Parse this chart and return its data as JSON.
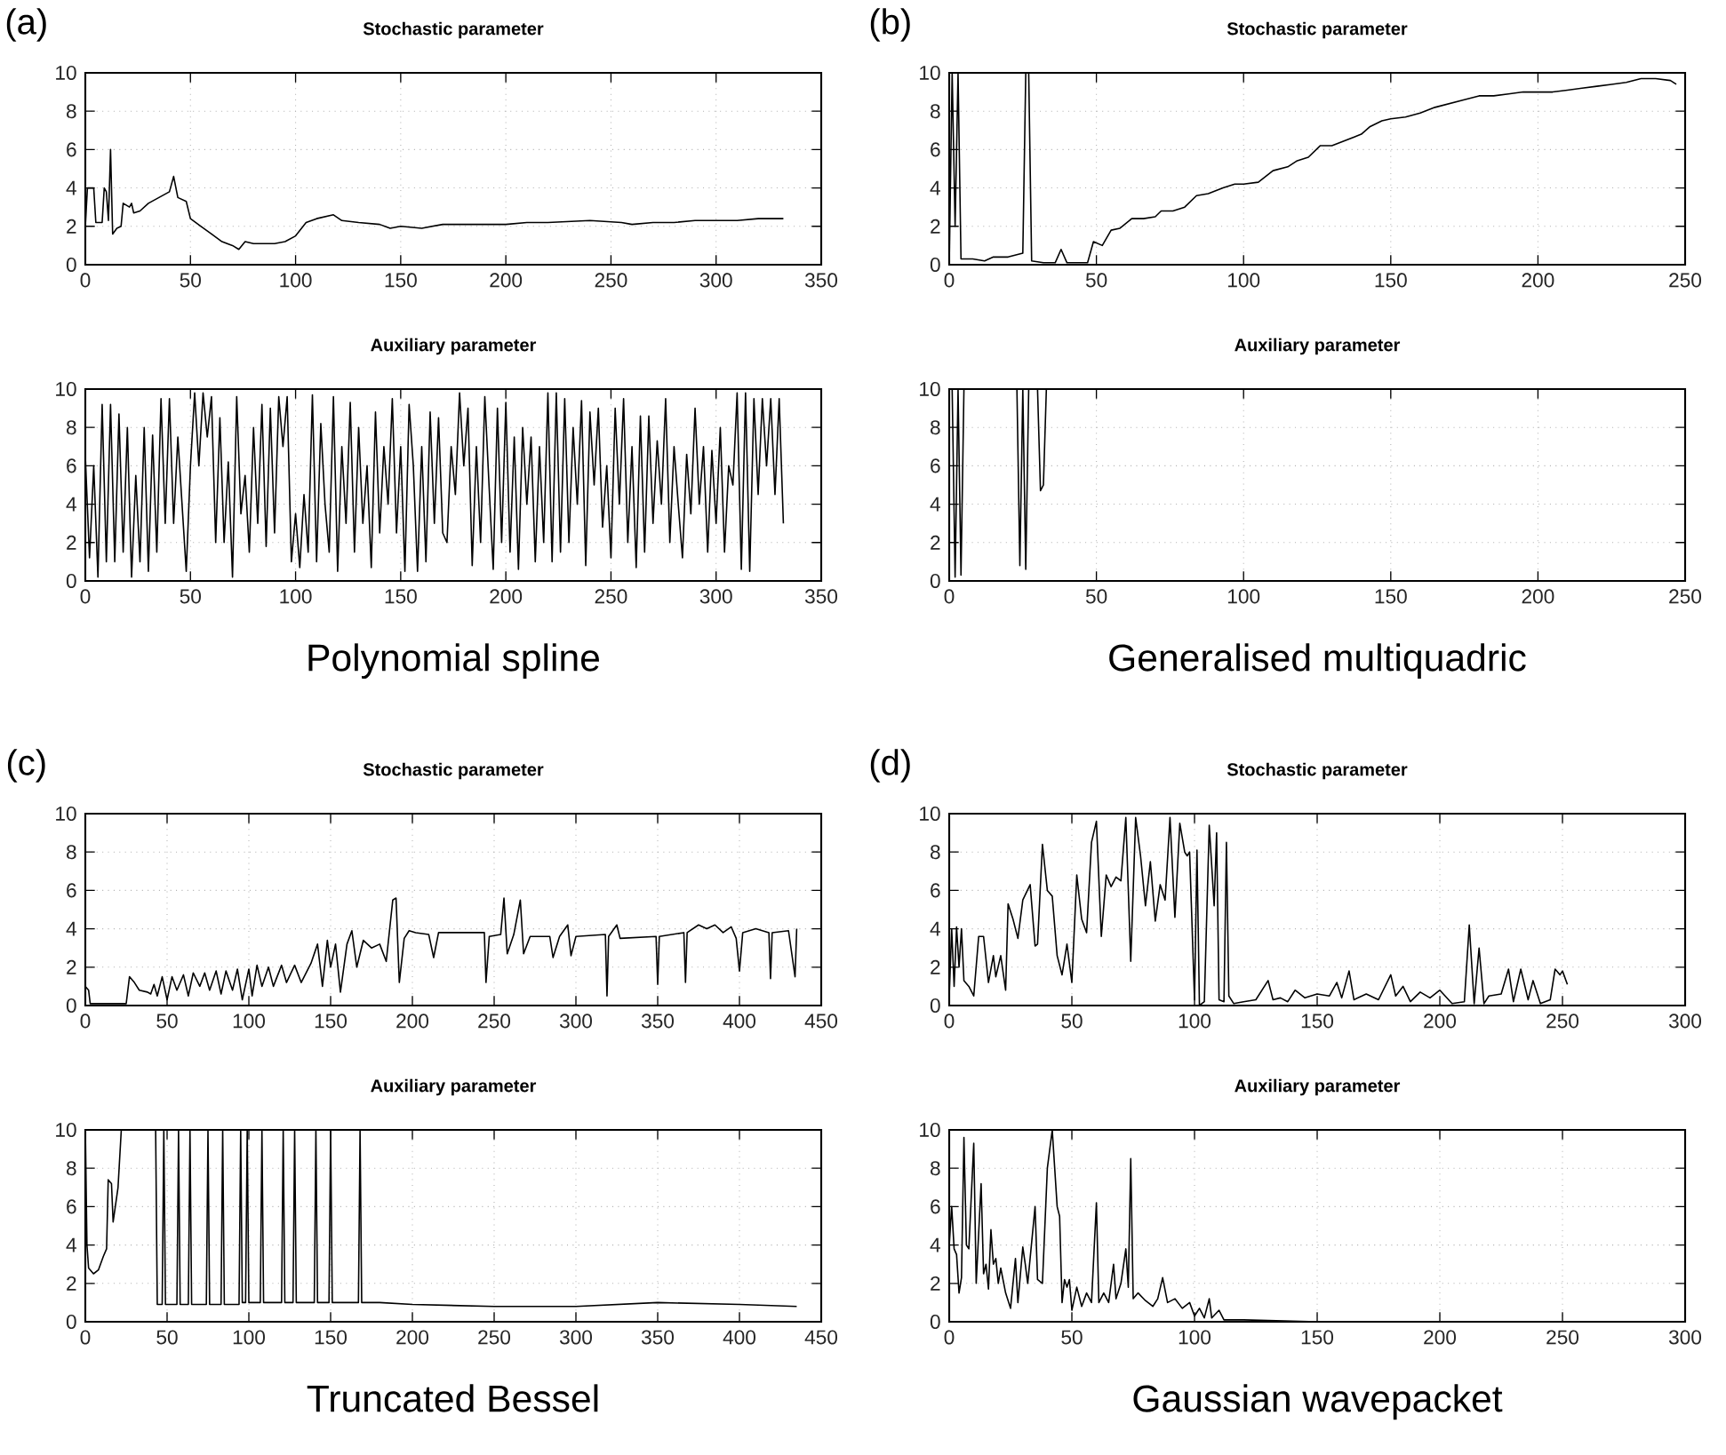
{
  "chart_data": [
    {
      "type": "line",
      "title": "Stochastic parameter",
      "annotations": [
        "(a)"
      ],
      "color": "#000000",
      "xlim": [
        0,
        350
      ],
      "ylim": [
        0,
        10
      ],
      "xticks": [
        0,
        50,
        100,
        150,
        200,
        250,
        300,
        350
      ],
      "yticks": [
        0,
        2,
        4,
        6,
        8,
        10
      ],
      "grid": true,
      "x": [
        0,
        1,
        4,
        5,
        8,
        9,
        10,
        11,
        12,
        13,
        15,
        17,
        18,
        21,
        22,
        23,
        26,
        30,
        35,
        40,
        42,
        44,
        48,
        50,
        55,
        60,
        65,
        70,
        73,
        76,
        80,
        90,
        95,
        100,
        105,
        110,
        118,
        122,
        130,
        140,
        145,
        150,
        160,
        170,
        180,
        190,
        200,
        210,
        220,
        240,
        255,
        260,
        270,
        280,
        290,
        300,
        310,
        320,
        332
      ],
      "values": [
        2,
        4,
        4,
        2.2,
        2.2,
        4,
        3.8,
        2.3,
        6,
        1.6,
        1.9,
        2,
        3.2,
        3,
        3.2,
        2.7,
        2.8,
        3.2,
        3.5,
        3.8,
        4.6,
        3.5,
        3.3,
        2.4,
        2,
        1.6,
        1.2,
        1,
        0.8,
        1.2,
        1.1,
        1.1,
        1.2,
        1.5,
        2.2,
        2.4,
        2.6,
        2.3,
        2.2,
        2.1,
        1.9,
        2,
        1.9,
        2.1,
        2.1,
        2.1,
        2.1,
        2.2,
        2.2,
        2.3,
        2.2,
        2.1,
        2.2,
        2.2,
        2.3,
        2.3,
        2.3,
        2.4,
        2.4
      ]
    },
    {
      "type": "line",
      "title": "Auxiliary parameter",
      "xlabel": "Polynomial spline",
      "color": "#000000",
      "xlim": [
        0,
        350
      ],
      "ylim": [
        0,
        10
      ],
      "xticks": [
        0,
        50,
        100,
        150,
        200,
        250,
        300,
        350
      ],
      "yticks": [
        0,
        2,
        4,
        6,
        8,
        10
      ],
      "grid": true,
      "x": [
        0,
        2,
        4,
        6,
        8,
        10,
        12,
        14,
        16,
        18,
        20,
        22,
        24,
        26,
        28,
        30,
        32,
        34,
        36,
        38,
        40,
        42,
        44,
        46,
        48,
        50,
        52,
        54,
        56,
        58,
        60,
        62,
        64,
        66,
        68,
        70,
        72,
        74,
        76,
        78,
        80,
        82,
        84,
        86,
        88,
        90,
        92,
        94,
        96,
        98,
        100,
        102,
        104,
        106,
        108,
        110,
        112,
        114,
        116,
        118,
        120,
        122,
        124,
        126,
        128,
        130,
        132,
        134,
        136,
        138,
        140,
        142,
        144,
        146,
        148,
        150,
        152,
        154,
        156,
        158,
        160,
        162,
        164,
        166,
        168,
        170,
        172,
        174,
        176,
        178,
        180,
        182,
        184,
        186,
        188,
        190,
        192,
        194,
        196,
        198,
        200,
        202,
        204,
        206,
        208,
        210,
        212,
        214,
        216,
        218,
        220,
        222,
        224,
        226,
        228,
        230,
        232,
        234,
        236,
        238,
        240,
        242,
        244,
        246,
        248,
        250,
        252,
        254,
        256,
        258,
        260,
        262,
        264,
        266,
        268,
        270,
        272,
        274,
        276,
        278,
        280,
        282,
        284,
        286,
        288,
        290,
        292,
        294,
        296,
        298,
        300,
        302,
        304,
        306,
        308,
        310,
        312,
        314,
        316,
        318,
        320,
        322,
        324,
        326,
        328,
        330,
        332
      ],
      "values": [
        6.5,
        1.2,
        6,
        0.2,
        9.2,
        1,
        9.2,
        1,
        8.7,
        1.5,
        8,
        0.2,
        5.5,
        1,
        8,
        0.5,
        7.6,
        1.5,
        9.5,
        3,
        9.5,
        3,
        7.5,
        4,
        0.5,
        6,
        9.8,
        6,
        9.8,
        7.5,
        9.6,
        2,
        8.5,
        2,
        6.2,
        0.2,
        9.6,
        3.5,
        5.5,
        1.5,
        8,
        3,
        9.2,
        1.8,
        9,
        2.5,
        9.6,
        7,
        9.6,
        1,
        3.5,
        0.7,
        4.5,
        1.5,
        9.7,
        1,
        8.2,
        4,
        1.5,
        9.6,
        0.5,
        7,
        3,
        9.3,
        1.5,
        8,
        3,
        6,
        0.7,
        8.8,
        2.5,
        7,
        4,
        9.5,
        2.5,
        7,
        0.5,
        9.2,
        6,
        0.5,
        7,
        1,
        8.8,
        3,
        8.5,
        2.5,
        2,
        7,
        4.5,
        9.8,
        6,
        9,
        0.8,
        7,
        2,
        9.6,
        5,
        0.6,
        9,
        2,
        9.3,
        1.5,
        7.5,
        0.6,
        8,
        4,
        7.5,
        1,
        7,
        2,
        9.8,
        1,
        9.8,
        1.5,
        9.5,
        2,
        8,
        4,
        9.4,
        0.8,
        8.8,
        5,
        9,
        2.8,
        6,
        1.2,
        9,
        4,
        9.5,
        2,
        7,
        0.7,
        8.6,
        1.5,
        8.6,
        3,
        7.3,
        4,
        9.5,
        2,
        7,
        4,
        1.2,
        6.6,
        3.5,
        9,
        4,
        7,
        1.5,
        6.8,
        3,
        8,
        1.5,
        6,
        5,
        9.8,
        0.6,
        9.8,
        0.5,
        9.5,
        4.5,
        9.5,
        6,
        9.5,
        4.5,
        9.5,
        3
      ]
    },
    {
      "type": "line",
      "title": "Stochastic parameter",
      "annotations": [
        "(b)"
      ],
      "color": "#000000",
      "xlim": [
        0,
        250
      ],
      "ylim": [
        0,
        10
      ],
      "xticks": [
        0,
        50,
        100,
        150,
        200,
        250
      ],
      "yticks": [
        0,
        2,
        4,
        6,
        8,
        10
      ],
      "grid": true,
      "x": [
        0,
        1,
        2,
        3,
        4,
        8,
        12,
        15,
        20,
        25,
        26,
        27,
        28,
        32,
        36,
        38,
        40,
        47,
        49,
        52,
        55,
        58,
        62,
        66,
        70,
        72,
        76,
        80,
        84,
        88,
        93,
        97,
        100,
        105,
        110,
        115,
        118,
        122,
        126,
        130,
        135,
        140,
        143,
        147,
        150,
        155,
        160,
        165,
        170,
        175,
        180,
        185,
        190,
        195,
        200,
        205,
        210,
        215,
        220,
        225,
        230,
        235,
        240,
        245,
        247
      ],
      "values": [
        0,
        10,
        2,
        10,
        0.3,
        0.3,
        0.2,
        0.4,
        0.4,
        0.6,
        10,
        10,
        0.2,
        0.1,
        0.1,
        0.8,
        0.1,
        0.1,
        1.2,
        1,
        1.8,
        1.9,
        2.4,
        2.4,
        2.5,
        2.8,
        2.8,
        3,
        3.6,
        3.7,
        4,
        4.2,
        4.2,
        4.3,
        4.9,
        5.1,
        5.4,
        5.6,
        6.2,
        6.2,
        6.5,
        6.8,
        7.2,
        7.5,
        7.6,
        7.7,
        7.9,
        8.2,
        8.4,
        8.6,
        8.8,
        8.8,
        8.9,
        9,
        9,
        9,
        9.1,
        9.2,
        9.3,
        9.4,
        9.5,
        9.7,
        9.7,
        9.6,
        9.4
      ]
    },
    {
      "type": "line",
      "title": "Auxiliary parameter",
      "xlabel": "Generalised multiquadric",
      "color": "#000000",
      "xlim": [
        0,
        250
      ],
      "ylim": [
        0,
        10
      ],
      "xticks": [
        0,
        50,
        100,
        150,
        200,
        250
      ],
      "yticks": [
        0,
        2,
        4,
        6,
        8,
        10
      ],
      "grid": true,
      "x": [
        0,
        1,
        2,
        3,
        4,
        5,
        23,
        24,
        25,
        26,
        27,
        30,
        31,
        32,
        33,
        247
      ],
      "values": [
        10,
        10,
        0.2,
        10,
        0.3,
        10,
        10,
        0.8,
        10,
        0.6,
        10,
        10,
        4.7,
        5,
        10,
        10
      ]
    },
    {
      "type": "line",
      "title": "Stochastic parameter",
      "annotations": [
        "(c)"
      ],
      "color": "#000000",
      "xlim": [
        0,
        450
      ],
      "ylim": [
        0,
        10
      ],
      "xticks": [
        0,
        50,
        100,
        150,
        200,
        250,
        300,
        350,
        400,
        450
      ],
      "yticks": [
        0,
        2,
        4,
        6,
        8,
        10
      ],
      "grid": true,
      "x": [
        0,
        2,
        3,
        25,
        27,
        30,
        33,
        38,
        40,
        42,
        44,
        47,
        50,
        53,
        56,
        60,
        63,
        66,
        70,
        73,
        76,
        80,
        83,
        86,
        90,
        93,
        96,
        100,
        102,
        105,
        108,
        112,
        115,
        120,
        123,
        128,
        132,
        138,
        142,
        145,
        148,
        150,
        153,
        156,
        160,
        163,
        166,
        170,
        175,
        180,
        184,
        188,
        190,
        192,
        195,
        198,
        202,
        210,
        213,
        216,
        230,
        244,
        245,
        247,
        254,
        256,
        258,
        262,
        266,
        268,
        272,
        284,
        286,
        290,
        295,
        297,
        300,
        318,
        319,
        320,
        325,
        327,
        349,
        350,
        351,
        366,
        367,
        368,
        375,
        380,
        385,
        390,
        395,
        398,
        400,
        402,
        410,
        418,
        419,
        420,
        430,
        434,
        435
      ],
      "values": [
        1,
        0.8,
        0.1,
        0.1,
        1.5,
        1.2,
        0.8,
        0.7,
        0.6,
        1.1,
        0.5,
        1.5,
        0.3,
        1.5,
        0.8,
        1.6,
        0.5,
        1.7,
        1,
        1.7,
        0.8,
        1.8,
        0.6,
        1.8,
        0.8,
        1.9,
        0.3,
        1.9,
        0.5,
        2.1,
        1,
        2,
        1,
        2.1,
        1.2,
        2.1,
        1.2,
        2.2,
        3.2,
        1,
        3.4,
        2,
        3.2,
        0.7,
        3.2,
        3.9,
        2,
        3.4,
        3,
        3.2,
        2.3,
        5.5,
        5.6,
        1.2,
        3.5,
        3.9,
        3.8,
        3.7,
        2.5,
        3.8,
        3.8,
        3.8,
        1.2,
        3.6,
        3.7,
        5.6,
        2.7,
        3.7,
        5.5,
        2.7,
        3.6,
        3.6,
        2.5,
        3.6,
        4.2,
        2.6,
        3.6,
        3.7,
        0.5,
        3.6,
        4.2,
        3.5,
        3.6,
        1.1,
        3.6,
        3.8,
        1.2,
        3.8,
        4.2,
        4,
        4.2,
        3.8,
        4.1,
        3.5,
        1.8,
        3.8,
        4,
        3.8,
        1.4,
        3.8,
        3.9,
        1.5,
        4
      ]
    },
    {
      "type": "line",
      "title": "Auxiliary parameter",
      "xlabel": "Truncated Bessel",
      "color": "#000000",
      "xlim": [
        0,
        450
      ],
      "ylim": [
        0,
        10
      ],
      "xticks": [
        0,
        50,
        100,
        150,
        200,
        250,
        300,
        350,
        400,
        450
      ],
      "yticks": [
        0,
        2,
        4,
        6,
        8,
        10
      ],
      "grid": true,
      "x": [
        0,
        1,
        2,
        5,
        8,
        11,
        13,
        14,
        16,
        17,
        20,
        22,
        43,
        44,
        47,
        48,
        49,
        56,
        57,
        58,
        63,
        64,
        65,
        74,
        75,
        76,
        83,
        84,
        85,
        94,
        95,
        96,
        98,
        99,
        100,
        107,
        108,
        109,
        120,
        121,
        122,
        127,
        128,
        129,
        140,
        141,
        142,
        149,
        150,
        151,
        167,
        168,
        169,
        180,
        200,
        250,
        300,
        350,
        400,
        435
      ],
      "values": [
        10,
        4,
        2.8,
        2.5,
        2.7,
        3.4,
        3.8,
        7.4,
        7.2,
        5.2,
        7,
        10,
        10,
        0.9,
        0.9,
        10,
        0.9,
        0.9,
        10,
        0.9,
        0.9,
        10,
        0.9,
        0.9,
        10,
        0.9,
        0.9,
        10,
        0.9,
        0.9,
        10,
        1,
        1,
        10,
        1,
        1,
        10,
        1,
        1,
        10,
        1,
        1,
        10,
        1,
        1,
        10,
        1,
        1,
        10,
        1,
        1,
        10,
        1,
        1,
        0.9,
        0.8,
        0.8,
        1,
        0.9,
        0.8
      ]
    },
    {
      "type": "line",
      "title": "Stochastic parameter",
      "annotations": [
        "(d)"
      ],
      "color": "#000000",
      "xlim": [
        0,
        300
      ],
      "ylim": [
        0,
        10
      ],
      "xticks": [
        0,
        50,
        100,
        150,
        200,
        250,
        300
      ],
      "yticks": [
        0,
        2,
        4,
        6,
        8,
        10
      ],
      "grid": true,
      "x": [
        0,
        1,
        2,
        3,
        4,
        5,
        6,
        8,
        10,
        12,
        14,
        16,
        18,
        19,
        21,
        23,
        24,
        26,
        28,
        30,
        33,
        35,
        36,
        38,
        40,
        42,
        44,
        46,
        48,
        50,
        52,
        54,
        56,
        58,
        60,
        62,
        64,
        66,
        68,
        70,
        72,
        74,
        76,
        78,
        80,
        82,
        84,
        86,
        88,
        90,
        92,
        94,
        96,
        97,
        98,
        100,
        101,
        102,
        104,
        106,
        108,
        109,
        110,
        112,
        113,
        114,
        116,
        120,
        125,
        130,
        132,
        135,
        138,
        141,
        145,
        150,
        155,
        158,
        160,
        163,
        165,
        170,
        175,
        180,
        182,
        185,
        188,
        192,
        196,
        200,
        205,
        210,
        212,
        214,
        216,
        218,
        220,
        225,
        228,
        230,
        233,
        236,
        238,
        241,
        245,
        247,
        249,
        250,
        252
      ],
      "values": [
        0.5,
        4,
        1,
        4.1,
        2,
        4,
        1.3,
        1,
        0.5,
        3.6,
        3.6,
        1.2,
        2.6,
        1.5,
        2.6,
        0.8,
        5.3,
        4.5,
        3.5,
        5.5,
        6.3,
        3.1,
        3.2,
        8.4,
        6,
        5.7,
        2.6,
        1.6,
        3.2,
        1.2,
        6.8,
        4.5,
        3.8,
        8.5,
        9.6,
        3.6,
        6.8,
        6.2,
        6.7,
        6.5,
        9.8,
        2.3,
        9.8,
        7.8,
        5.2,
        7.5,
        4.4,
        6.3,
        5.5,
        9.8,
        4.6,
        9.5,
        8,
        7.8,
        8,
        0.3,
        8.1,
        0,
        0.2,
        9.4,
        5.2,
        9,
        0.3,
        0.2,
        8.5,
        0.5,
        0.1,
        0.2,
        0.3,
        1.3,
        0.3,
        0.4,
        0.2,
        0.8,
        0.4,
        0.6,
        0.5,
        1.2,
        0.4,
        1.8,
        0.3,
        0.6,
        0.3,
        1.6,
        0.5,
        1,
        0.2,
        0.7,
        0.4,
        0.8,
        0.1,
        0.2,
        4.2,
        0.1,
        3,
        0.1,
        0.5,
        0.6,
        1.9,
        0.2,
        1.9,
        0.3,
        1.3,
        0.1,
        0.3,
        1.9,
        1.6,
        1.8,
        1.1
      ]
    },
    {
      "type": "line",
      "title": "Auxiliary parameter",
      "xlabel": "Gaussian wavepacket",
      "color": "#000000",
      "xlim": [
        0,
        300
      ],
      "ylim": [
        0,
        10
      ],
      "xticks": [
        0,
        50,
        100,
        150,
        200,
        250,
        300
      ],
      "yticks": [
        0,
        2,
        4,
        6,
        8,
        10
      ],
      "grid": true,
      "x": [
        0,
        1,
        2,
        3,
        4,
        5,
        6,
        7,
        8,
        10,
        11,
        13,
        14,
        15,
        16,
        17,
        18,
        19,
        20,
        21,
        23,
        25,
        27,
        28,
        30,
        31,
        32,
        35,
        36,
        38,
        40,
        42,
        44,
        45,
        46,
        47,
        48,
        49,
        50,
        52,
        54,
        56,
        58,
        60,
        61,
        63,
        65,
        67,
        68,
        70,
        72,
        73,
        74,
        75,
        77,
        80,
        83,
        85,
        87,
        89,
        92,
        95,
        98,
        100,
        102,
        104,
        106,
        107,
        110,
        112,
        120,
        150,
        200,
        253
      ],
      "values": [
        4,
        6,
        3.8,
        3.5,
        1.5,
        2.3,
        9.6,
        4,
        3.8,
        9.3,
        2,
        7.2,
        2.5,
        3,
        1.7,
        4.8,
        3,
        3.3,
        2,
        2.8,
        1.5,
        0.7,
        3.3,
        1,
        3.9,
        3,
        2,
        6,
        2.2,
        2,
        8,
        10,
        6,
        5.5,
        1,
        2.2,
        1.8,
        2.2,
        0.6,
        1.8,
        0.8,
        1.5,
        1,
        6.2,
        1,
        1.5,
        1,
        3,
        1.2,
        2,
        3.8,
        1.8,
        8.5,
        1.2,
        1.5,
        1.1,
        0.8,
        1.2,
        2.3,
        1,
        1.2,
        0.7,
        1,
        0.3,
        0.7,
        0.2,
        1.2,
        0.2,
        0.6,
        0.1,
        0.1,
        0,
        0,
        0
      ]
    }
  ]
}
